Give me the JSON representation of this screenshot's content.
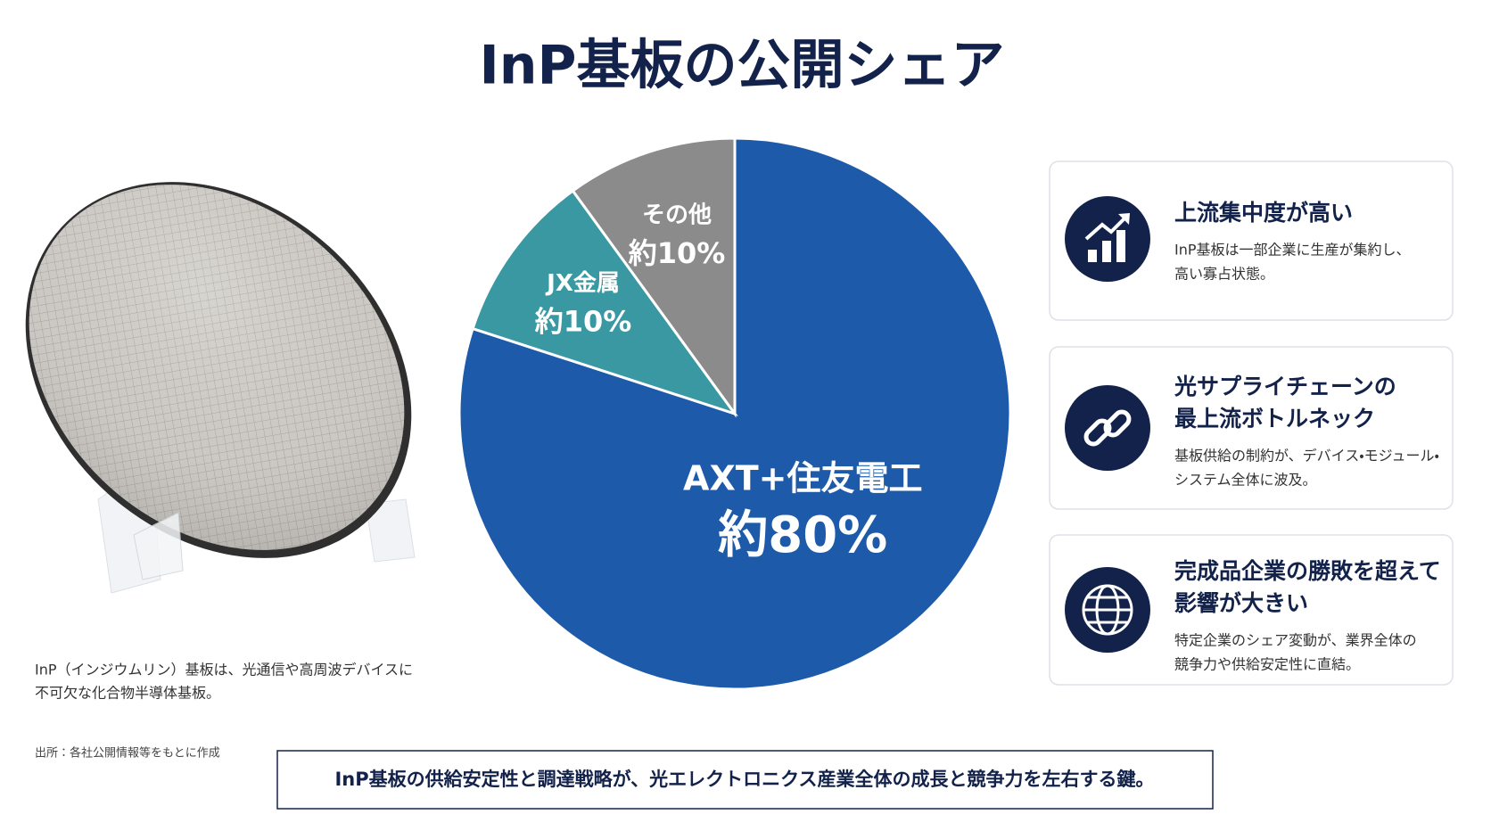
{
  "title": "InP基板の公開シェア",
  "chart_data": {
    "type": "pie",
    "categories": [
      "AXT+住友電工",
      "JX金属",
      "その他"
    ],
    "values": [
      80,
      10,
      10
    ],
    "value_labels": [
      "約80%",
      "約10%",
      "約10%"
    ],
    "colors": [
      "#1d5aa9",
      "#3a98a2",
      "#8b8b8b"
    ]
  },
  "image_caption": [
    "InP（インジウムリン）基板は、光通信や高周波デバイスに",
    "不可欠な化合物半導体基板。"
  ],
  "source": "出所：各社公開情報等をもとに作成",
  "cards": [
    {
      "title": [
        "上流集中度が高い"
      ],
      "text": [
        "InP基板は一部企業に生産が集約し、",
        "高い寡占状態。"
      ]
    },
    {
      "title": [
        "光サプライチェーンの",
        "最上流ボトルネック"
      ],
      "text": [
        "基板供給の制約が、デバイス・モジュール・",
        "システム全体に波及。"
      ]
    },
    {
      "title": [
        "完成品企業の勝敗を超えて",
        "影響が大きい"
      ],
      "text": [
        "特定企業のシェア変動が、業界全体の",
        "競争力や供給安定性に直結。"
      ]
    }
  ],
  "footer": "InP基板の供給安定性と調達戦略が、光エレクトロニクス産業全体の成長と競争力を左右する鍵。"
}
